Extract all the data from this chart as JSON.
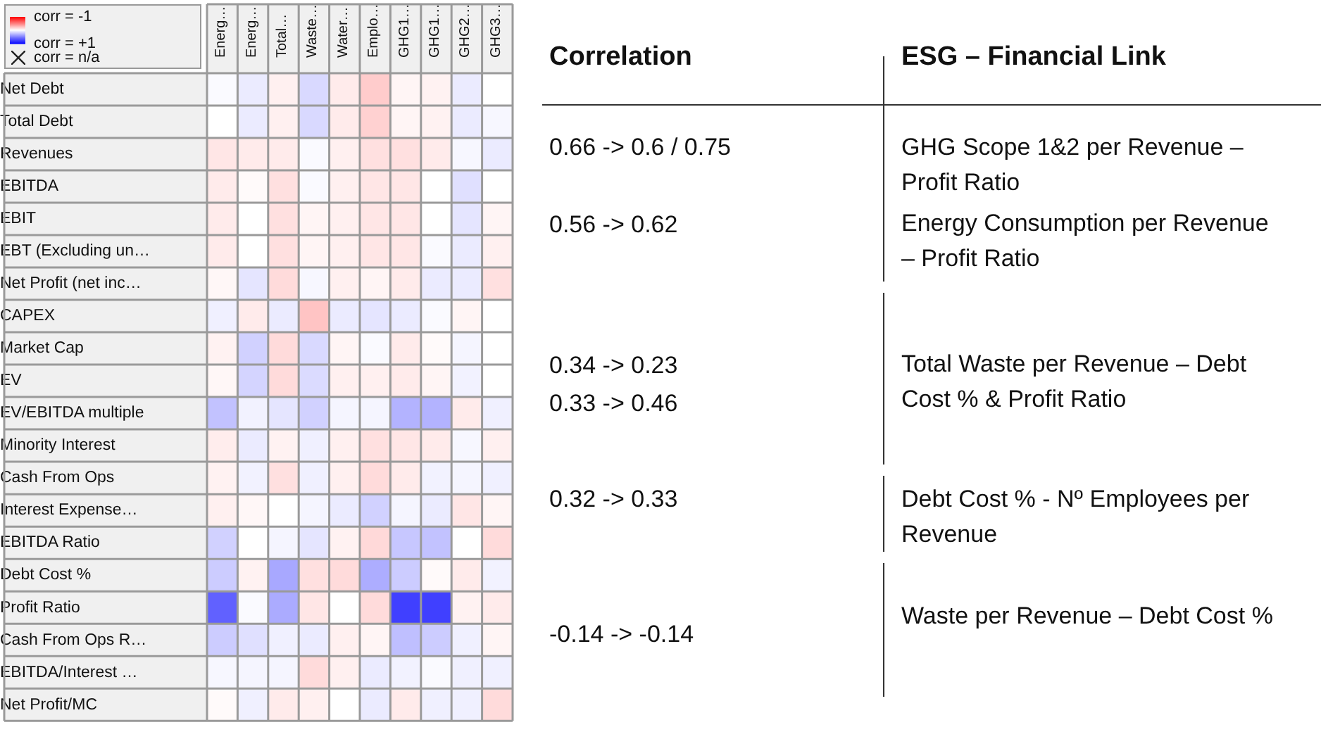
{
  "chart_data": [
    {
      "type": "heatmap",
      "categories": [
        "Energ…",
        "Energ…",
        "Total…",
        "Waste…",
        "Water…",
        "Emplo…",
        "GHG1…",
        "GHG1…",
        "GHG2…",
        "GHG3…"
      ],
      "y_categories": [
        "Net Debt",
        "Total Debt",
        "Revenues",
        "EBITDA",
        "EBIT",
        "EBT (Excluding un…",
        "Net Profit (net inc…",
        "CAPEX",
        "Market Cap",
        "EV",
        "EV/EBITDA multiple",
        "Minority Interest",
        "Cash From Ops",
        "Interest Expense…",
        "EBITDA Ratio",
        "Debt Cost %",
        "Profit Ratio",
        "Cash From Ops R…",
        "EBITDA/Interest …",
        "Net Profit/MC"
      ],
      "cells": [
        [
          0.02,
          0.08,
          -0.06,
          0.15,
          -0.08,
          -0.2,
          -0.04,
          -0.05,
          0.08,
          0.0
        ],
        [
          0.0,
          0.08,
          -0.06,
          0.15,
          -0.08,
          -0.18,
          -0.04,
          -0.05,
          0.08,
          0.03
        ],
        [
          -0.1,
          -0.08,
          -0.08,
          0.02,
          -0.06,
          -0.12,
          -0.12,
          -0.08,
          0.03,
          0.08
        ],
        [
          -0.08,
          -0.02,
          -0.12,
          0.02,
          -0.06,
          -0.1,
          -0.1,
          0.0,
          0.12,
          0.0
        ],
        [
          -0.08,
          0.0,
          -0.12,
          -0.04,
          -0.06,
          -0.1,
          -0.1,
          0.0,
          0.1,
          -0.04
        ],
        [
          -0.08,
          0.0,
          -0.12,
          -0.04,
          -0.06,
          -0.1,
          -0.1,
          0.02,
          0.08,
          -0.06
        ],
        [
          -0.03,
          0.1,
          -0.14,
          0.03,
          -0.06,
          -0.04,
          -0.08,
          0.08,
          0.08,
          -0.12
        ],
        [
          0.06,
          -0.08,
          0.08,
          -0.23,
          0.08,
          0.1,
          0.08,
          0.02,
          -0.04,
          0.0
        ],
        [
          -0.05,
          0.18,
          -0.14,
          0.15,
          -0.04,
          0.02,
          -0.08,
          -0.02,
          0.04,
          0.0
        ],
        [
          -0.03,
          0.17,
          -0.14,
          0.14,
          -0.06,
          -0.06,
          -0.08,
          -0.04,
          0.05,
          0.0
        ],
        [
          0.24,
          0.05,
          0.1,
          0.18,
          0.04,
          0.04,
          0.3,
          0.3,
          -0.08,
          0.06
        ],
        [
          -0.07,
          0.08,
          -0.05,
          0.06,
          -0.06,
          -0.12,
          -0.1,
          -0.08,
          0.03,
          -0.06
        ],
        [
          -0.05,
          0.05,
          -0.12,
          0.06,
          -0.06,
          -0.14,
          -0.08,
          0.05,
          0.04,
          0.06
        ],
        [
          -0.06,
          -0.03,
          0.0,
          0.04,
          0.08,
          0.18,
          0.04,
          0.08,
          -0.1,
          -0.04
        ],
        [
          0.18,
          0.0,
          0.04,
          0.1,
          -0.05,
          -0.15,
          0.22,
          0.24,
          0.0,
          -0.14
        ],
        [
          0.2,
          -0.05,
          0.34,
          -0.12,
          -0.14,
          0.32,
          0.2,
          -0.02,
          -0.08,
          0.05
        ],
        [
          0.62,
          0.02,
          0.33,
          -0.1,
          0.0,
          -0.14,
          0.75,
          0.75,
          -0.05,
          -0.08
        ],
        [
          0.2,
          0.12,
          0.06,
          0.08,
          -0.06,
          -0.04,
          0.25,
          0.2,
          0.06,
          -0.04
        ],
        [
          0.03,
          0.04,
          0.04,
          -0.14,
          -0.06,
          0.08,
          0.05,
          0.02,
          0.06,
          0.06
        ],
        [
          -0.02,
          0.06,
          -0.08,
          -0.06,
          0.0,
          0.08,
          -0.08,
          0.06,
          0.06,
          -0.14
        ]
      ],
      "clim": [
        -1,
        1
      ],
      "cticks": [
        {
          "value": -1,
          "label": "corr = -1"
        },
        {
          "value": 1,
          "label": "corr = +1"
        }
      ],
      "annotations": [
        "corr = n/a"
      ],
      "grid": true
    },
    {
      "type": "other",
      "annotations": [
        "Correlation",
        "ESG – Financial Link",
        "0.66 -> 0.6 / 0.75",
        "GHG Scope 1&2 per Revenue – Profit Ratio",
        "0.56 -> 0.62",
        "Energy Consumption per Revenue – Profit Ratio",
        "0.34 -> 0.23",
        "Total Waste per Revenue – Debt Cost % & Profit Ratio",
        "0.33 -> 0.46",
        "0.32 -> 0.33",
        "Debt Cost % - Nº Employees per Revenue",
        "-0.14 -> -0.14",
        "Waste per Revenue – Debt Cost %"
      ]
    }
  ]
}
